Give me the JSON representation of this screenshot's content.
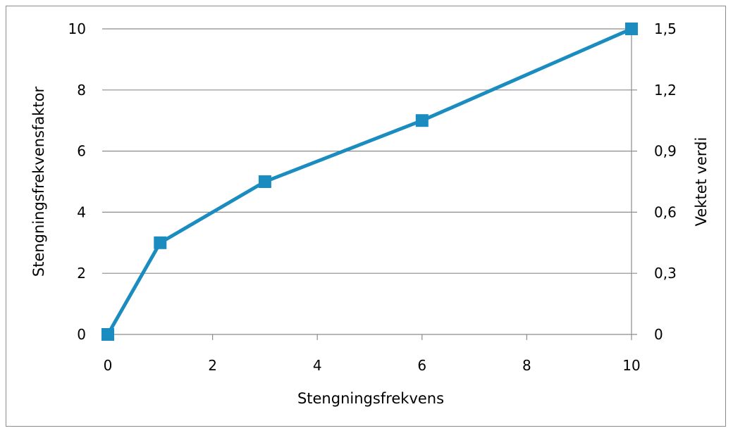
{
  "chart_data": {
    "type": "line",
    "title": "",
    "xlabel": "Stengningsfrekvens",
    "ylabel": "Stengningsfrekvensfaktor",
    "y2label": "Vektet verdi",
    "xlim": [
      0,
      10
    ],
    "ylim": [
      0,
      10
    ],
    "y2lim": [
      0,
      1.5
    ],
    "x_ticks": [
      "0",
      "2",
      "4",
      "6",
      "8",
      "10"
    ],
    "y_ticks": [
      "0",
      "2",
      "4",
      "6",
      "8",
      "10"
    ],
    "y2_ticks": [
      "0",
      "0,3",
      "0,6",
      "0,9",
      "1,2",
      "1,5"
    ],
    "grid": "horizontal",
    "legend": "none",
    "marker": "square",
    "color": "#1a8cbf",
    "series": [
      {
        "x": [
          0,
          1,
          3,
          6,
          10
        ],
        "y": [
          0,
          3,
          5,
          7,
          10
        ]
      }
    ]
  }
}
